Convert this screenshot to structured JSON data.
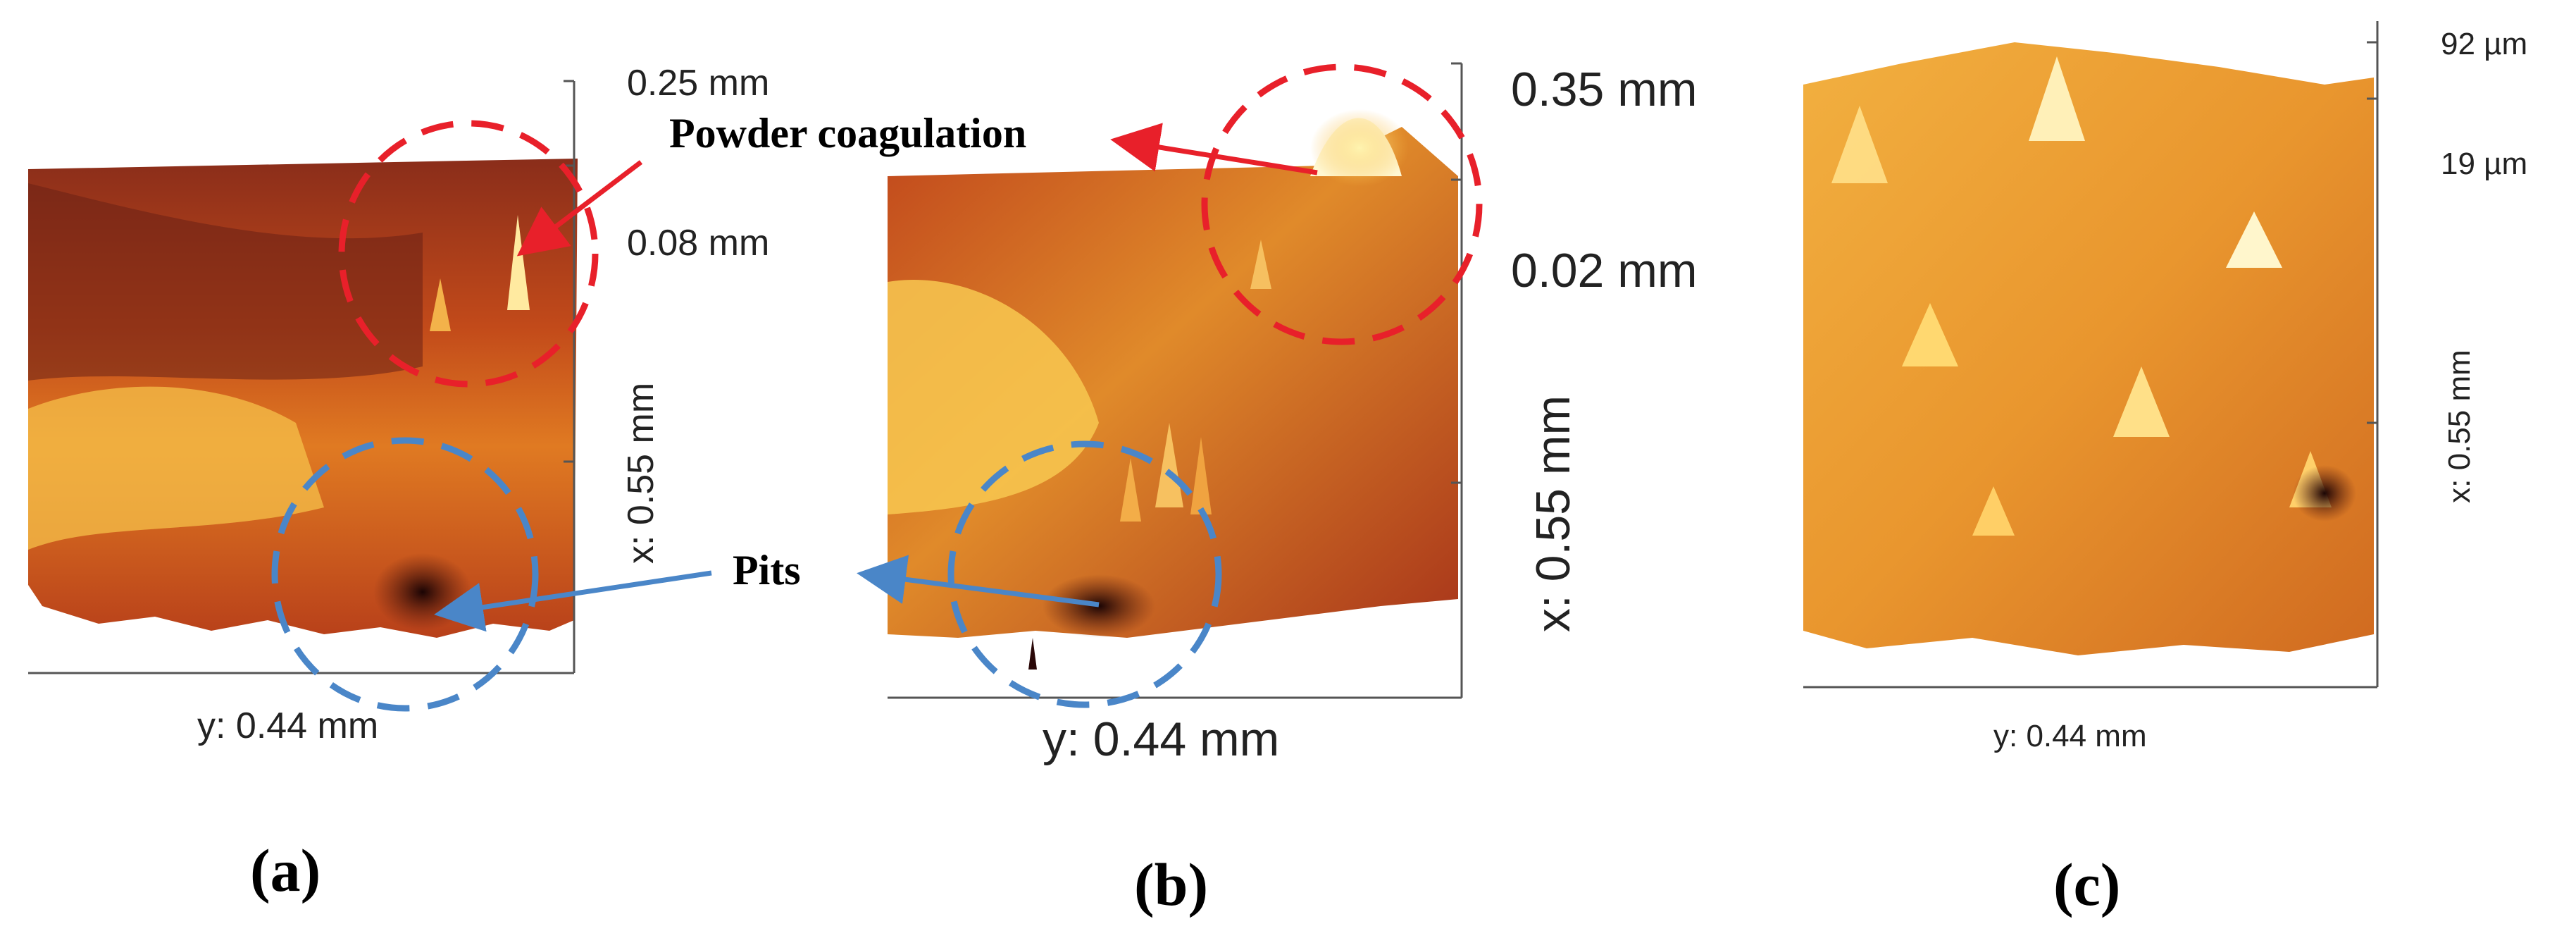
{
  "figure": {
    "panel_a": {
      "z_max": "0.25 mm",
      "z_mid": "0.08 mm",
      "x_axis": "x: 0.55 mm",
      "y_axis": "y: 0.44 mm",
      "label": "(a)"
    },
    "panel_b": {
      "z_max": "0.35 mm",
      "z_mid": "0.02 mm",
      "x_axis": "x: 0.55 mm",
      "y_axis": "y: 0.44 mm",
      "label": "(b)"
    },
    "panel_c": {
      "z_max": "92 µm",
      "z_mid": "19 µm",
      "x_axis": "x: 0.55 mm",
      "y_axis": "y: 0.44 mm",
      "label": "(c)"
    },
    "annotations": {
      "powder": "Powder coagulation",
      "pits": "Pits"
    },
    "colors": {
      "red_marker": "#e8202a",
      "blue_marker": "#4a86c8",
      "surface_dark": "#4a1410",
      "surface_mid": "#d9621c",
      "surface_light": "#ffe27a"
    }
  }
}
